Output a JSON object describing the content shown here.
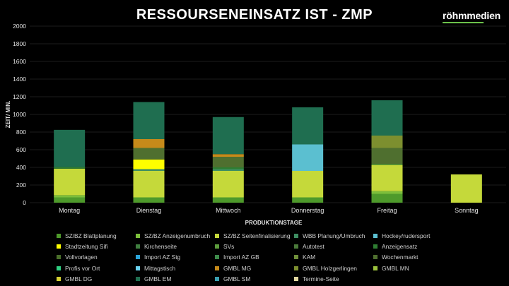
{
  "chart_data": {
    "type": "stacked-bar",
    "title": "RESSOURSENEINSATZ IST - ZMP",
    "brand": "röhmmedien",
    "brand_color": "#6cc24a",
    "xlabel": "PRODUKTIONSTAGE",
    "ylabel": "ZEIT/ MIN.",
    "ylim": [
      0,
      2000
    ],
    "yticks": [
      0,
      200,
      400,
      600,
      800,
      1000,
      1200,
      1400,
      1600,
      1800,
      2000
    ],
    "categories": [
      "Montag",
      "Dienstag",
      "Mittwoch",
      "Donnerstag",
      "Freitag",
      "Sonntag"
    ],
    "series": [
      {
        "name": "SZ/BZ Blattplanung",
        "color": "#4e9a2b",
        "values": [
          60,
          60,
          60,
          60,
          100,
          0
        ]
      },
      {
        "name": "SZ/BZ Anzeigenumbruch",
        "color": "#7cbf3b",
        "values": [
          25,
          0,
          0,
          0,
          30,
          0
        ]
      },
      {
        "name": "SZ/BZ Seitenfinalisierung",
        "color": "#c5d93a",
        "values": [
          300,
          300,
          300,
          300,
          300,
          320
        ]
      },
      {
        "name": "WBB Planung/Umbruch",
        "color": "#3e8e62",
        "values": [
          0,
          20,
          20,
          0,
          0,
          0
        ]
      },
      {
        "name": "Hockey/rudersport",
        "color": "#5bbfd0",
        "values": [
          0,
          0,
          0,
          300,
          0,
          0
        ]
      },
      {
        "name": "Stadtzeitung Sifi",
        "color": "#ffff00",
        "values": [
          0,
          110,
          0,
          0,
          0,
          0
        ]
      },
      {
        "name": "Kirchenseite",
        "color": "#3f7f3f",
        "values": [
          0,
          0,
          0,
          0,
          0,
          0
        ]
      },
      {
        "name": "SVs",
        "color": "#5c9c3c",
        "values": [
          0,
          0,
          0,
          0,
          0,
          0
        ]
      },
      {
        "name": "Autotest",
        "color": "#4a7a3a",
        "values": [
          0,
          0,
          0,
          0,
          0,
          0
        ]
      },
      {
        "name": "Anzeigensatz",
        "color": "#2e7d32",
        "values": [
          20,
          0,
          20,
          0,
          10,
          0
        ]
      },
      {
        "name": "Vollvorlagen",
        "color": "#4a6f2a",
        "values": [
          0,
          0,
          0,
          0,
          0,
          0
        ]
      },
      {
        "name": "Import AZ Stg",
        "color": "#2aa3d6",
        "values": [
          0,
          0,
          0,
          0,
          0,
          0
        ]
      },
      {
        "name": "Import AZ GB",
        "color": "#3d8a4a",
        "values": [
          0,
          0,
          0,
          0,
          0,
          0
        ]
      },
      {
        "name": "KAM",
        "color": "#6f8f3a",
        "values": [
          0,
          0,
          0,
          0,
          0,
          0
        ]
      },
      {
        "name": "Wochenmarkt",
        "color": "#4f6f2f",
        "values": [
          0,
          130,
          120,
          0,
          180,
          0
        ]
      },
      {
        "name": "Profis vor Ort",
        "color": "#2fd082",
        "values": [
          0,
          0,
          0,
          0,
          0,
          0
        ]
      },
      {
        "name": "Mittagstisch",
        "color": "#6bd3f0",
        "values": [
          0,
          0,
          0,
          0,
          0,
          0
        ]
      },
      {
        "name": "GMBL MG",
        "color": "#c68a1a",
        "values": [
          0,
          100,
          30,
          0,
          0,
          0
        ]
      },
      {
        "name": "GMBL Holzgerlingen",
        "color": "#7d8f2f",
        "values": [
          0,
          0,
          0,
          0,
          140,
          0
        ]
      },
      {
        "name": "GMBL MN",
        "color": "#9bc13d",
        "values": [
          0,
          0,
          0,
          0,
          0,
          0
        ]
      },
      {
        "name": "GMBL DG",
        "color": "#d6d233",
        "values": [
          0,
          0,
          0,
          0,
          0,
          0
        ]
      },
      {
        "name": "GMBL EM",
        "color": "#1f6e50",
        "values": [
          420,
          420,
          420,
          420,
          400,
          0
        ]
      },
      {
        "name": "GMBL SM",
        "color": "#3a9fb0",
        "values": [
          0,
          0,
          0,
          0,
          0,
          0
        ]
      },
      {
        "name": "Termine-Seite",
        "color": "#e2d8a0",
        "values": [
          0,
          0,
          0,
          0,
          0,
          0
        ]
      }
    ],
    "stack_overrides_note": ""
  }
}
